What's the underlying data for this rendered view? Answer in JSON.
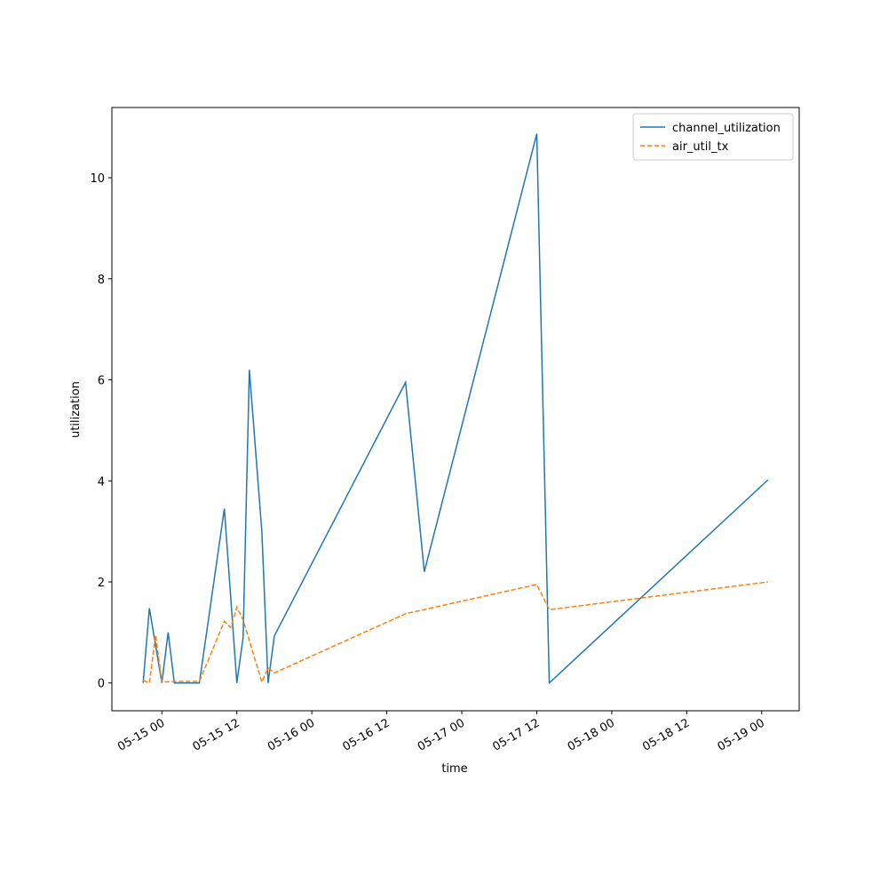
{
  "chart_data": {
    "type": "line",
    "xlabel": "time",
    "ylabel": "utilization",
    "xlim": [
      "05-14 16",
      "05-19 06"
    ],
    "xticks": [
      "05-15 00",
      "05-15 12",
      "05-16 00",
      "05-16 12",
      "05-17 00",
      "05-17 12",
      "05-18 00",
      "05-18 12",
      "05-19 00"
    ],
    "ylim": [
      -0.55,
      11.39
    ],
    "yticks": [
      0,
      2,
      4,
      6,
      8,
      10
    ],
    "legend": "upper right",
    "grid": false,
    "series": [
      {
        "name": "channel_utilization",
        "color": "#1f77b4",
        "dash": "solid",
        "x": [
          "05-14 21",
          "05-14 22",
          "05-15 00",
          "05-15 01",
          "05-15 02",
          "05-15 06",
          "05-15 10",
          "05-15 12",
          "05-15 13",
          "05-15 14",
          "05-15 16",
          "05-15 17",
          "05-15 18",
          "05-16 15",
          "05-16 18",
          "05-17 12",
          "05-17 14",
          "05-19 01"
        ],
        "values": [
          0,
          1.48,
          0,
          1.0,
          0,
          0,
          3.45,
          0,
          0.9,
          6.2,
          3.0,
          0,
          0.93,
          5.95,
          2.2,
          10.87,
          0,
          4.02
        ]
      },
      {
        "name": "air_util_tx",
        "color": "#ff7f0e",
        "dash": "dashed",
        "x": [
          "05-14 21",
          "05-14 22",
          "05-14 23",
          "05-15 00",
          "05-15 03",
          "05-15 06",
          "05-15 10",
          "05-15 11",
          "05-15 12",
          "05-15 13",
          "05-15 16",
          "05-15 17",
          "05-15 18",
          "05-16 15",
          "05-17 12",
          "05-17 14",
          "05-19 01"
        ],
        "values": [
          0.05,
          0,
          0.95,
          0.02,
          0.03,
          0.03,
          1.22,
          1.1,
          1.5,
          1.25,
          0.02,
          0.3,
          0.2,
          1.37,
          1.95,
          1.45,
          2.0
        ]
      }
    ]
  }
}
